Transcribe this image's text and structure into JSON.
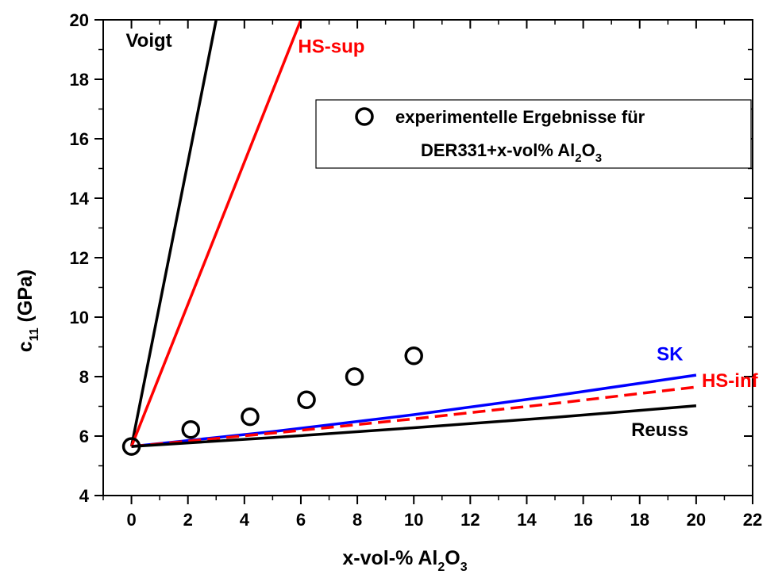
{
  "chart_data": {
    "type": "line",
    "xlabel": {
      "main": "x-vol-% Al",
      "sub1": "2",
      "mid": "O",
      "sub2": "3"
    },
    "ylabel": {
      "main": "c",
      "sub": "11",
      "rest": " (GPa)"
    },
    "xlim": [
      -1,
      22
    ],
    "ylim": [
      4,
      20
    ],
    "x_ticks": [
      0,
      2,
      4,
      6,
      8,
      10,
      12,
      14,
      16,
      18,
      20,
      22
    ],
    "y_ticks": [
      4,
      6,
      8,
      10,
      12,
      14,
      16,
      18,
      20
    ],
    "grid": false,
    "legend": {
      "placement": "top-right",
      "line1": "experimentelle Ergebnisse für",
      "line2_main": "DER331+x-vol% Al",
      "line2_sub1": "2",
      "line2_mid": "O",
      "line2_sub2": "3"
    },
    "series": [
      {
        "name": "Voigt",
        "kind": "line",
        "color": "#000000",
        "dash": false,
        "x": [
          0,
          3.0
        ],
        "y": [
          5.65,
          20.0
        ],
        "label_at": [
          -0.2,
          19.1
        ]
      },
      {
        "name": "HS-sup",
        "kind": "line",
        "color": "#ff0000",
        "dash": false,
        "x": [
          0,
          6.0
        ],
        "y": [
          5.65,
          20.0
        ],
        "label_at": [
          5.9,
          18.9
        ]
      },
      {
        "name": "SK",
        "kind": "line",
        "color": "#0000ff",
        "dash": false,
        "x": [
          0,
          5,
          10,
          15,
          20
        ],
        "y": [
          5.65,
          6.15,
          6.72,
          7.36,
          8.05
        ],
        "label_at": [
          18.6,
          8.55
        ]
      },
      {
        "name": "HS-inf",
        "kind": "line",
        "color": "#ff0000",
        "dash": true,
        "x": [
          0,
          5,
          10,
          15,
          20
        ],
        "y": [
          5.65,
          6.1,
          6.58,
          7.1,
          7.65
        ],
        "label_at": [
          20.2,
          7.65
        ]
      },
      {
        "name": "Reuss",
        "kind": "line",
        "color": "#000000",
        "dash": false,
        "x": [
          0,
          5,
          10,
          15,
          20
        ],
        "y": [
          5.65,
          5.95,
          6.28,
          6.63,
          7.02
        ],
        "label_at": [
          17.7,
          6.0
        ]
      },
      {
        "name": "experimentelle Ergebnisse",
        "kind": "scatter",
        "color": "#000000",
        "x": [
          0,
          2.1,
          4.2,
          6.2,
          7.9,
          10.0
        ],
        "y": [
          5.65,
          6.22,
          6.65,
          7.22,
          8.0,
          8.7
        ]
      }
    ]
  }
}
